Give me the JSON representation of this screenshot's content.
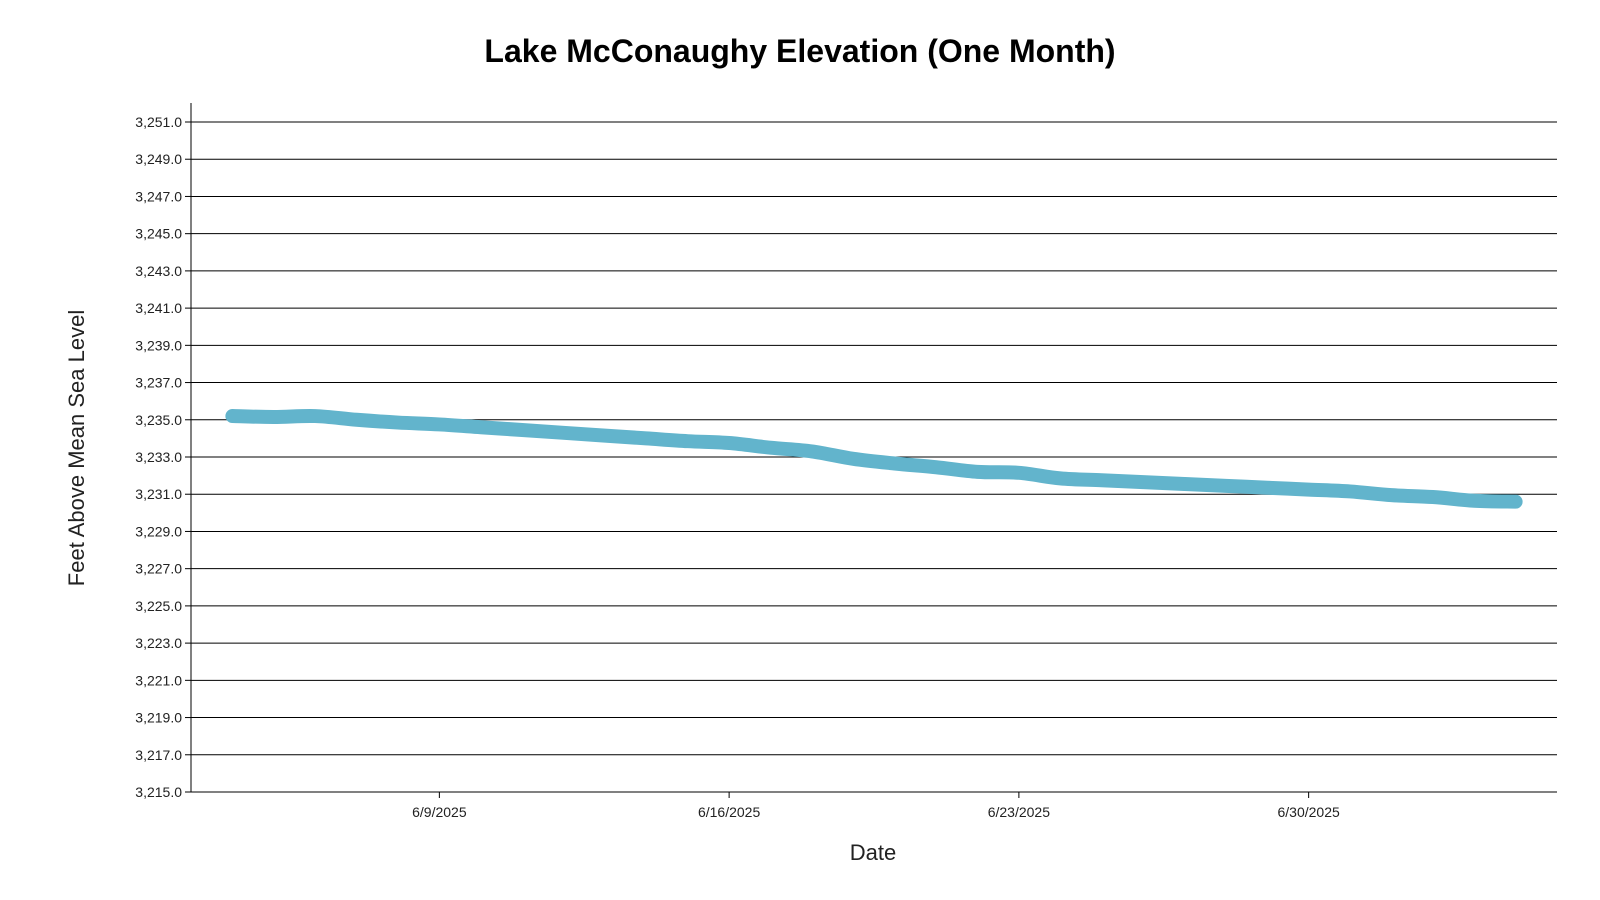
{
  "chart_data": {
    "type": "line",
    "title": "Lake McConaughy Elevation (One Month)",
    "xlabel": "Date",
    "ylabel": "Feet Above Mean Sea Level",
    "x_type": "date",
    "xlim": [
      "2025-06-03",
      "2025-07-06"
    ],
    "ylim": [
      3215.0,
      3251.0
    ],
    "y_ticks": [
      3215.0,
      3217.0,
      3219.0,
      3221.0,
      3223.0,
      3225.0,
      3227.0,
      3229.0,
      3231.0,
      3233.0,
      3235.0,
      3237.0,
      3239.0,
      3241.0,
      3243.0,
      3245.0,
      3247.0,
      3249.0,
      3251.0
    ],
    "y_tick_labels": [
      "3,215.0",
      "3,217.0",
      "3,219.0",
      "3,221.0",
      "3,223.0",
      "3,225.0",
      "3,227.0",
      "3,229.0",
      "3,231.0",
      "3,233.0",
      "3,235.0",
      "3,237.0",
      "3,239.0",
      "3,241.0",
      "3,243.0",
      "3,245.0",
      "3,247.0",
      "3,249.0",
      "3,251.0"
    ],
    "x_ticks": [
      {
        "date": "2025-06-09",
        "label": "6/9/2025"
      },
      {
        "date": "2025-06-16",
        "label": "6/16/2025"
      },
      {
        "date": "2025-06-23",
        "label": "6/23/2025"
      },
      {
        "date": "2025-06-30",
        "label": "6/30/2025"
      }
    ],
    "grid": true,
    "legend": false,
    "series": [
      {
        "color": "#62b4cc",
        "x": [
          "2025-06-04",
          "2025-06-05",
          "2025-06-06",
          "2025-06-07",
          "2025-06-08",
          "2025-06-09",
          "2025-06-10",
          "2025-06-11",
          "2025-06-12",
          "2025-06-13",
          "2025-06-14",
          "2025-06-15",
          "2025-06-16",
          "2025-06-17",
          "2025-06-18",
          "2025-06-19",
          "2025-06-20",
          "2025-06-21",
          "2025-06-22",
          "2025-06-23",
          "2025-06-24",
          "2025-06-25",
          "2025-06-26",
          "2025-06-27",
          "2025-06-28",
          "2025-06-29",
          "2025-06-30",
          "2025-07-01",
          "2025-07-02",
          "2025-07-03",
          "2025-07-04",
          "2025-07-05"
        ],
        "y": [
          3235.2,
          3235.15,
          3235.2,
          3235.0,
          3234.85,
          3234.75,
          3234.6,
          3234.45,
          3234.3,
          3234.15,
          3234.0,
          3233.85,
          3233.75,
          3233.5,
          3233.3,
          3232.9,
          3232.65,
          3232.45,
          3232.2,
          3232.15,
          3231.85,
          3231.75,
          3231.65,
          3231.55,
          3231.45,
          3231.35,
          3231.25,
          3231.15,
          3230.95,
          3230.85,
          3230.65,
          3230.6
        ]
      }
    ]
  }
}
